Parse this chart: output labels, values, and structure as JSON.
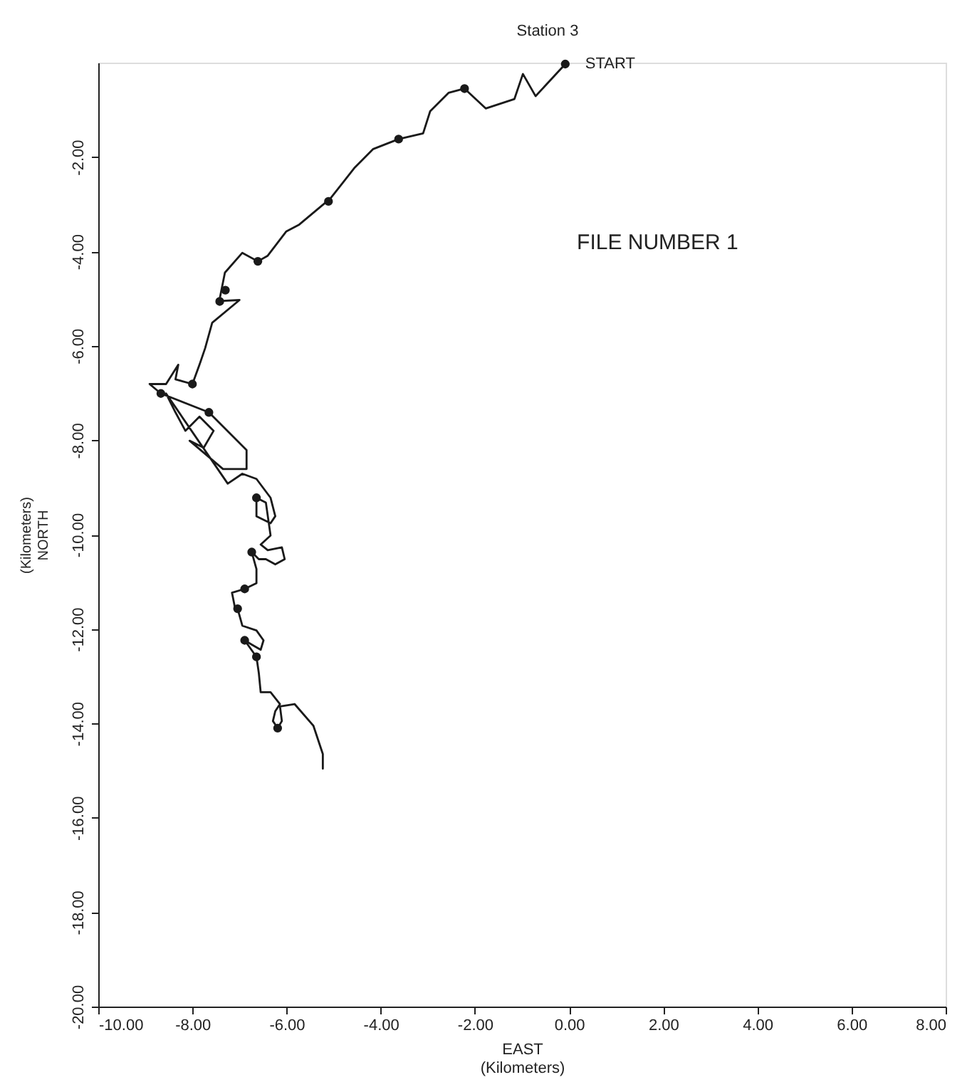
{
  "chart_data": {
    "type": "line",
    "title": "Station 3",
    "xlabel": "EAST\n(Kilometers)",
    "ylabel": "(Kilometers)\nNORTH",
    "annotations": [
      {
        "text": "START",
        "x": -0.08,
        "y": -0.03
      },
      "FILE NUMBER 1"
    ],
    "xlim": [
      -10,
      8
    ],
    "ylim": [
      -20,
      0
    ],
    "xticks": [
      {
        "value": -10,
        "label": "-10.00"
      },
      {
        "value": -8,
        "label": "-8.00"
      },
      {
        "value": -6,
        "label": "-6.00"
      },
      {
        "value": -4,
        "label": "-4.00"
      },
      {
        "value": -2,
        "label": "-2.00"
      },
      {
        "value": 0,
        "label": "0.00"
      },
      {
        "value": 2,
        "label": "2.00"
      },
      {
        "value": 4,
        "label": "4.00"
      },
      {
        "value": 6,
        "label": "6.00"
      },
      {
        "value": 8,
        "label": "8.00"
      }
    ],
    "yticks": [
      {
        "value": -2,
        "label": "-2.00"
      },
      {
        "value": -4,
        "label": "-4.00"
      },
      {
        "value": -6,
        "label": "-6.00"
      },
      {
        "value": -8,
        "label": "-8.00"
      },
      {
        "value": -10,
        "label": "-10.00"
      },
      {
        "value": -12,
        "label": "-12.00"
      },
      {
        "value": -14,
        "label": "-14.00"
      },
      {
        "value": -16,
        "label": "-16.00"
      },
      {
        "value": -18,
        "label": "-18.00"
      },
      {
        "value": -20,
        "label": "-20.00"
      }
    ],
    "grid": false,
    "series": [
      {
        "color": "#1a1a1a",
        "marker": "none",
        "line_style": "solid",
        "x": [
          -0.08,
          -0.71,
          -0.98,
          -1.16,
          -1.77,
          -2.22,
          -2.56,
          -2.95,
          -3.1,
          -3.62,
          -4.16,
          -4.55,
          -5.07,
          -5.73,
          -6.01,
          -6.4,
          -6.61,
          -6.94,
          -7.31,
          -7.43,
          -7.0,
          -7.58,
          -7.73,
          -7.85,
          -8.0,
          -8.36,
          -8.3,
          -8.56,
          -8.91,
          -8.67,
          -7.65,
          -6.85,
          -6.85,
          -7.35,
          -8.06,
          -7.76,
          -7.55,
          -7.85,
          -8.15,
          -8.36,
          -8.56,
          -7.25,
          -6.94,
          -6.64,
          -6.34,
          -6.24,
          -6.34,
          -6.64,
          -6.64,
          -6.44,
          -6.34,
          -6.55,
          -6.4,
          -6.1,
          -6.04,
          -6.24,
          -6.44,
          -6.59,
          -6.74,
          -6.64,
          -6.64,
          -6.89,
          -7.16,
          -7.1,
          -7.04,
          -6.94,
          -6.64,
          -6.49,
          -6.55,
          -6.74,
          -6.89,
          -6.64,
          -6.59,
          -6.55,
          -6.34,
          -6.14,
          -6.24,
          -6.29,
          -6.19,
          -6.1,
          -6.14,
          -5.83,
          -5.43,
          -5.23,
          -5.23
        ],
        "values": [
          -0.03,
          -0.71,
          -0.24,
          -0.77,
          -0.97,
          -0.55,
          -0.64,
          -1.03,
          -1.5,
          -1.62,
          -1.83,
          -2.22,
          -2.88,
          -3.43,
          -3.58,
          -4.09,
          -4.21,
          -4.03,
          -4.45,
          -5.05,
          -5.03,
          -5.51,
          -6.05,
          -6.4,
          -6.81,
          -6.71,
          -6.4,
          -6.81,
          -6.81,
          -7.01,
          -7.41,
          -8.21,
          -8.61,
          -8.61,
          -8.01,
          -8.16,
          -7.8,
          -7.5,
          -7.8,
          -7.41,
          -7.01,
          -8.92,
          -8.71,
          -8.82,
          -9.22,
          -9.61,
          -9.76,
          -9.61,
          -9.22,
          -9.32,
          -10.02,
          -10.21,
          -10.33,
          -10.27,
          -10.52,
          -10.63,
          -10.52,
          -10.52,
          -10.37,
          -10.73,
          -11.03,
          -11.15,
          -11.23,
          -11.53,
          -11.57,
          -11.93,
          -12.03,
          -12.24,
          -12.44,
          -12.33,
          -12.24,
          -12.59,
          -12.93,
          -13.34,
          -13.34,
          -13.59,
          -13.74,
          -13.95,
          -14.1,
          -13.95,
          -13.64,
          -13.59,
          -14.05,
          -14.65,
          -14.96
        ]
      },
      {
        "type": "scatter",
        "color": "#1a1a1a",
        "marker": "circle",
        "x": [
          -0.08,
          -2.22,
          -3.62,
          -5.11,
          -6.61,
          -7.3,
          -7.42,
          -8.0,
          -8.67,
          -7.65,
          -6.64,
          -6.74,
          -6.89,
          -7.04,
          -6.89,
          -6.64,
          -6.19
        ],
        "values": [
          -0.03,
          -0.55,
          -1.62,
          -2.94,
          -4.21,
          -4.82,
          -5.06,
          -6.81,
          -7.01,
          -7.41,
          -9.22,
          -10.37,
          -11.15,
          -11.57,
          -12.24,
          -12.59,
          -14.1
        ]
      }
    ]
  }
}
